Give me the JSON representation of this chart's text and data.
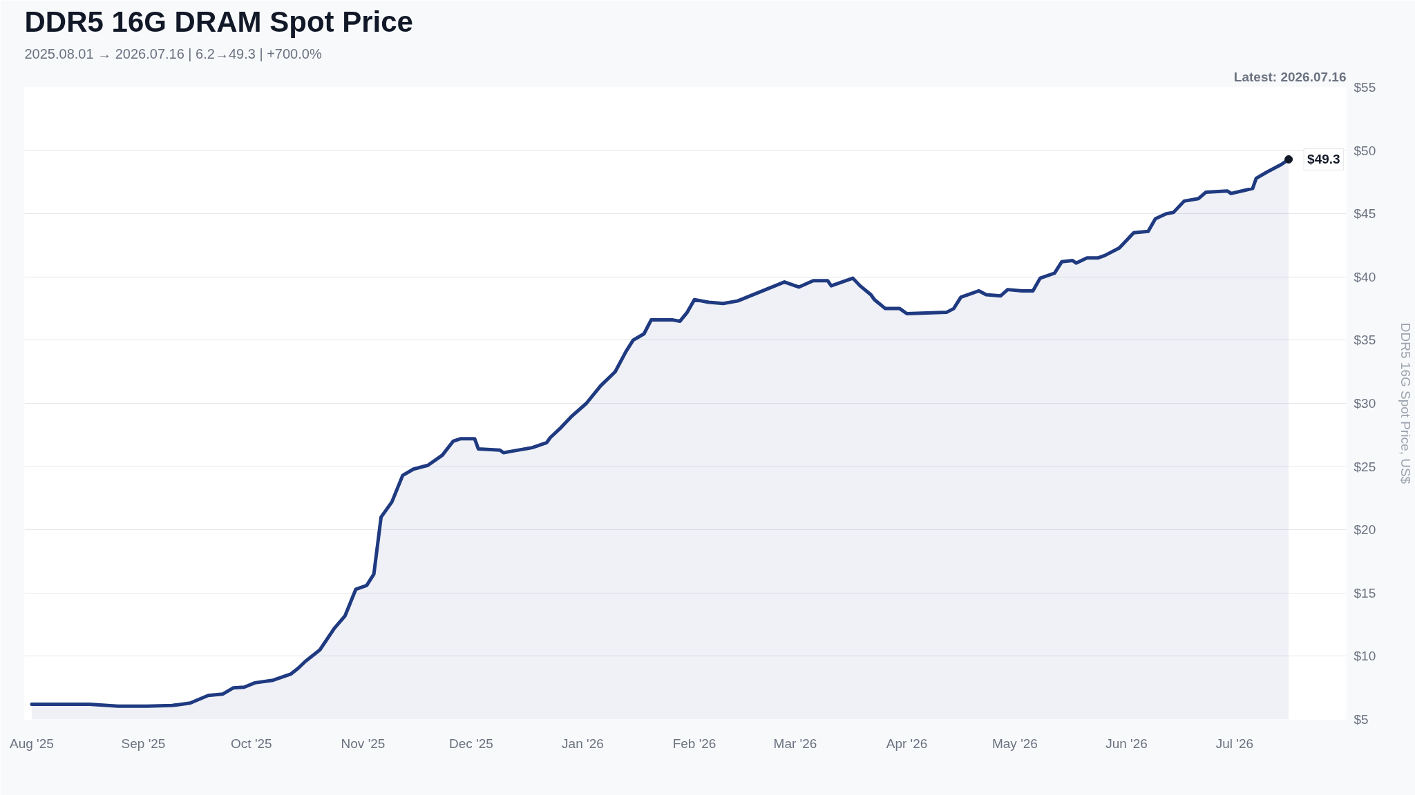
{
  "chart_data": {
    "type": "area",
    "title": "DDR5 16G DRAM Spot Price",
    "subtitle": "2025.08.01 → 2026.07.16  |  6.2→49.3  |  +700.0%",
    "ylabel": "DDR5 16G Spot Price, US$",
    "annotations": [
      "Latest: 2026.07.16",
      {
        "text": "$49.3",
        "x": "2026-07-16",
        "y": 49.3
      }
    ],
    "x": [
      "2025-08-01",
      "2025-08-17",
      "2025-08-25",
      "2025-09-02",
      "2025-09-09",
      "2025-09-14",
      "2025-09-19",
      "2025-09-23",
      "2025-09-26",
      "2025-09-29",
      "2025-10-02",
      "2025-10-07",
      "2025-10-12",
      "2025-10-14",
      "2025-10-16",
      "2025-10-20",
      "2025-10-24",
      "2025-10-27",
      "2025-10-30",
      "2025-11-02",
      "2025-11-04",
      "2025-11-06",
      "2025-11-09",
      "2025-11-12",
      "2025-11-15",
      "2025-11-19",
      "2025-11-23",
      "2025-11-26",
      "2025-11-28",
      "2025-12-02",
      "2025-12-03",
      "2025-12-09",
      "2025-12-10",
      "2025-12-12",
      "2025-12-18",
      "2025-12-22",
      "2025-12-23",
      "2025-12-26",
      "2025-12-29",
      "2026-01-02",
      "2026-01-06",
      "2026-01-10",
      "2026-01-13",
      "2026-01-15",
      "2026-01-18",
      "2026-01-20",
      "2026-01-26",
      "2026-01-28",
      "2026-01-30",
      "2026-02-01",
      "2026-02-05",
      "2026-02-09",
      "2026-02-13",
      "2026-02-26",
      "2026-03-01",
      "2026-03-02",
      "2026-03-06",
      "2026-03-10",
      "2026-03-11",
      "2026-03-17",
      "2026-03-19",
      "2026-03-22",
      "2026-03-23",
      "2026-03-26",
      "2026-03-30",
      "2026-04-01",
      "2026-04-12",
      "2026-04-14",
      "2026-04-16",
      "2026-04-19",
      "2026-04-21",
      "2026-04-23",
      "2026-04-27",
      "2026-04-29",
      "2026-05-03",
      "2026-05-06",
      "2026-05-08",
      "2026-05-12",
      "2026-05-14",
      "2026-05-17",
      "2026-05-18",
      "2026-05-21",
      "2026-05-24",
      "2026-05-26",
      "2026-05-30",
      "2026-06-03",
      "2026-06-07",
      "2026-06-09",
      "2026-06-12",
      "2026-06-14",
      "2026-06-17",
      "2026-06-21",
      "2026-06-23",
      "2026-06-29",
      "2026-06-30",
      "2026-07-03",
      "2026-07-06",
      "2026-07-07",
      "2026-07-10",
      "2026-07-14",
      "2026-07-16"
    ],
    "series": [
      {
        "color": "#1f3a80",
        "values": [
          6.2,
          6.2,
          6.05,
          6.05,
          6.1,
          6.3,
          6.9,
          7.0,
          7.5,
          7.55,
          7.9,
          8.1,
          8.6,
          9.05,
          9.6,
          10.5,
          12.2,
          13.2,
          15.3,
          15.6,
          16.5,
          21.0,
          22.2,
          24.3,
          24.8,
          25.1,
          25.9,
          27.0,
          27.2,
          27.2,
          26.4,
          26.3,
          26.1,
          26.2,
          26.5,
          26.9,
          27.3,
          28.1,
          29.0,
          30.0,
          31.4,
          32.5,
          34.1,
          35.0,
          35.5,
          36.6,
          36.6,
          36.5,
          37.2,
          38.2,
          38.0,
          37.9,
          38.1,
          39.6,
          39.3,
          39.2,
          39.7,
          39.7,
          39.3,
          39.9,
          39.3,
          38.6,
          38.2,
          37.5,
          37.5,
          37.1,
          37.2,
          37.5,
          38.4,
          38.7,
          38.9,
          38.6,
          38.5,
          39.0,
          38.9,
          38.9,
          39.9,
          40.3,
          41.2,
          41.3,
          41.1,
          41.5,
          41.5,
          41.7,
          42.3,
          43.5,
          43.6,
          44.6,
          45.0,
          45.1,
          46.0,
          46.2,
          46.7,
          46.8,
          46.6,
          46.8,
          47.0,
          47.8,
          48.3,
          48.9,
          49.3
        ]
      }
    ],
    "xlim": [
      "2025-07-30",
      "2026-08-01"
    ],
    "xticks": [
      {
        "value": "2025-08-01",
        "label": "Aug '25"
      },
      {
        "value": "2025-09-01",
        "label": "Sep '25"
      },
      {
        "value": "2025-10-01",
        "label": "Oct '25"
      },
      {
        "value": "2025-11-01",
        "label": "Nov '25"
      },
      {
        "value": "2025-12-01",
        "label": "Dec '25"
      },
      {
        "value": "2026-01-01",
        "label": "Jan '26"
      },
      {
        "value": "2026-02-01",
        "label": "Feb '26"
      },
      {
        "value": "2026-03-01",
        "label": "Mar '26"
      },
      {
        "value": "2026-04-01",
        "label": "Apr '26"
      },
      {
        "value": "2026-05-01",
        "label": "May '26"
      },
      {
        "value": "2026-06-01",
        "label": "Jun '26"
      },
      {
        "value": "2026-07-01",
        "label": "Jul '26"
      }
    ],
    "ylim": [
      5,
      55
    ],
    "yticks": [
      {
        "value": 5,
        "label": "$5"
      },
      {
        "value": 10,
        "label": "$10"
      },
      {
        "value": 15,
        "label": "$15"
      },
      {
        "value": 20,
        "label": "$20"
      },
      {
        "value": 25,
        "label": "$25"
      },
      {
        "value": 30,
        "label": "$30"
      },
      {
        "value": 35,
        "label": "$35"
      },
      {
        "value": 40,
        "label": "$40"
      },
      {
        "value": 45,
        "label": "$45"
      },
      {
        "value": 50,
        "label": "$50"
      },
      {
        "value": 55,
        "label": "$55"
      }
    ],
    "grid": "y"
  }
}
